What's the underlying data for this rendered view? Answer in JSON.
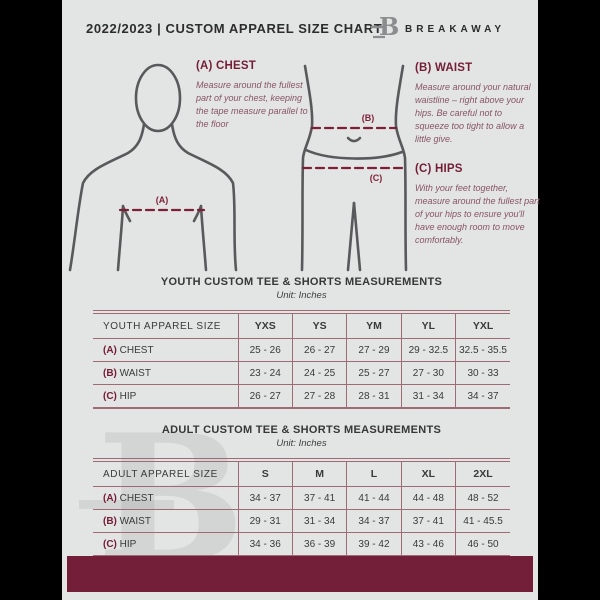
{
  "header": {
    "title": "2022/2023  |  CUSTOM APPAREL SIZE CHART",
    "brand": "BREAKAWAY",
    "logo_letter": "B"
  },
  "guide": {
    "labels": {
      "chest": "(A)",
      "waist": "(B)",
      "hips": "(C)"
    },
    "sections": [
      {
        "heading": "(A) CHEST",
        "body": "Measure around the fullest part of your chest, keeping the tape measure parallel to the floor"
      },
      {
        "heading": "(B) WAIST",
        "body": "Measure around your natural waistline – right above your hips. Be careful not to squeeze too tight to allow a little give."
      },
      {
        "heading": "(C) HIPS",
        "body": "With your feet together, measure around the fullest part of your hips to ensure you'll\nhave enough room to move comfortably."
      }
    ]
  },
  "tables": [
    {
      "title": "YOUTH CUSTOM TEE & SHORTS MEASUREMENTS",
      "unit": "Unit: Inches",
      "header_label": "YOUTH APPAREL SIZE",
      "sizes": [
        "YXS",
        "YS",
        "YM",
        "YL",
        "YXL"
      ],
      "rows": [
        {
          "key": "(A)",
          "label": "CHEST",
          "values": [
            "25 - 26",
            "26 - 27",
            "27 - 29",
            "29 - 32.5",
            "32.5 - 35.5"
          ]
        },
        {
          "key": "(B)",
          "label": "WAIST",
          "values": [
            "23 - 24",
            "24 - 25",
            "25 - 27",
            "27 - 30",
            "30 - 33"
          ]
        },
        {
          "key": "(C)",
          "label": "HIP",
          "values": [
            "26 - 27",
            "27 - 28",
            "28 - 31",
            "31 - 34",
            "34 - 37"
          ]
        }
      ]
    },
    {
      "title": "ADULT CUSTOM TEE & SHORTS MEASUREMENTS",
      "unit": "Unit: Inches",
      "header_label": "ADULT APPAREL SIZE",
      "sizes": [
        "S",
        "M",
        "L",
        "XL",
        "2XL"
      ],
      "rows": [
        {
          "key": "(A)",
          "label": "CHEST",
          "values": [
            "34 - 37",
            "37 - 41",
            "41 - 44",
            "44 - 48",
            "48 - 52"
          ]
        },
        {
          "key": "(B)",
          "label": "WAIST",
          "values": [
            "29 - 31",
            "31 - 34",
            "34 - 37",
            "37 - 41",
            "41 - 45.5"
          ]
        },
        {
          "key": "(C)",
          "label": "HIP",
          "values": [
            "34 - 36",
            "36 - 39",
            "39 - 42",
            "43 - 46",
            "46 - 50"
          ]
        }
      ]
    }
  ],
  "colors": {
    "maroon": "#731d36",
    "maroon_dash": "#7e1f38",
    "table_border": "#9d6a76",
    "footer_bar": "#731f39",
    "text_dark": "#3a3a3a",
    "doc_background": "#e3e4e4",
    "figure_stroke": "#58595b"
  }
}
